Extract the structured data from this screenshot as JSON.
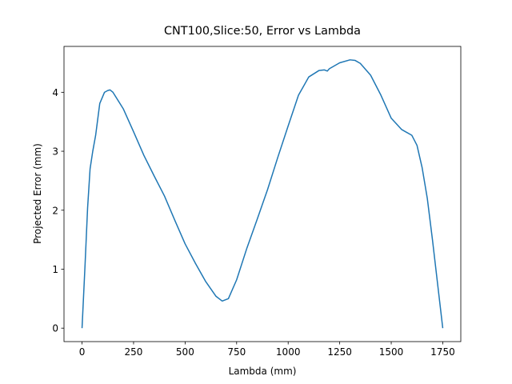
{
  "chart_data": {
    "type": "line",
    "title": "CNT100,Slice:50, Error vs Lambda",
    "x_label": "Lambda (mm)",
    "y_label": "Projected Error (mm)",
    "x": [
      0,
      15,
      27,
      39,
      52,
      66,
      86,
      109,
      125,
      136,
      150,
      200,
      250,
      300,
      350,
      400,
      450,
      500,
      550,
      600,
      650,
      680,
      710,
      750,
      800,
      850,
      900,
      950,
      1000,
      1050,
      1100,
      1150,
      1175,
      1190,
      1200,
      1250,
      1300,
      1325,
      1350,
      1400,
      1450,
      1500,
      1550,
      1600,
      1625,
      1650,
      1675,
      1700,
      1725,
      1750
    ],
    "series": [
      {
        "name": "error",
        "color": "#1f77b4",
        "values": [
          0,
          1.1,
          2.04,
          2.7,
          3.0,
          3.27,
          3.81,
          4.0,
          4.03,
          4.04,
          4.0,
          3.72,
          3.33,
          2.93,
          2.58,
          2.24,
          1.83,
          1.43,
          1.1,
          0.79,
          0.54,
          0.46,
          0.5,
          0.82,
          1.36,
          1.85,
          2.35,
          2.9,
          3.43,
          3.95,
          4.26,
          4.37,
          4.38,
          4.36,
          4.4,
          4.5,
          4.55,
          4.54,
          4.49,
          4.29,
          3.95,
          3.56,
          3.37,
          3.27,
          3.1,
          2.72,
          2.2,
          1.5,
          0.75,
          0
        ]
      }
    ],
    "xlim": [
      -87.5,
      1837.5
    ],
    "ylim": [
      -0.228,
      4.778
    ],
    "xticks": [
      0,
      250,
      500,
      750,
      1000,
      1250,
      1500,
      1750
    ],
    "yticks": [
      0,
      1,
      2,
      3,
      4
    ]
  }
}
